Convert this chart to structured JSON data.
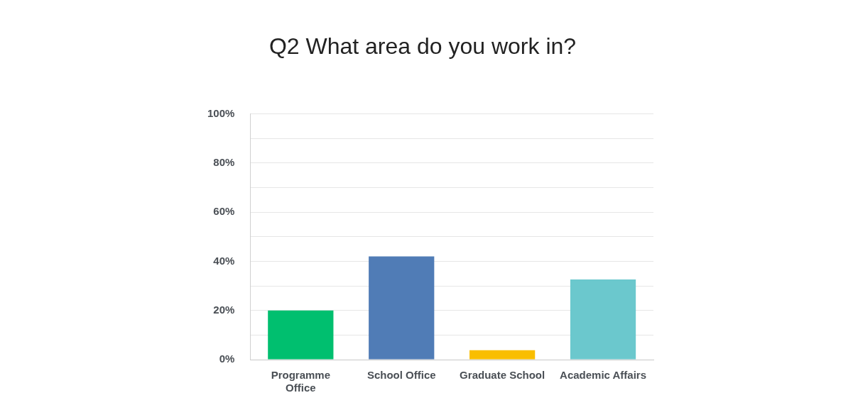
{
  "chart_data": {
    "type": "bar",
    "title": "Q2 What area do you work in?",
    "categories": [
      "Programme Office",
      "School Office",
      "Graduate School",
      "Academic Affairs"
    ],
    "values": [
      20,
      42,
      3.8,
      32.6
    ],
    "colors": [
      "#00bf6f",
      "#507cb6",
      "#f9be00",
      "#6bc8cd"
    ],
    "ylim": [
      0,
      100
    ],
    "yticks": [
      {
        "value": 0,
        "label": "0%"
      },
      {
        "value": 10,
        "label": null
      },
      {
        "value": 20,
        "label": "20%"
      },
      {
        "value": 30,
        "label": null
      },
      {
        "value": 40,
        "label": "40%"
      },
      {
        "value": 50,
        "label": null
      },
      {
        "value": 60,
        "label": "60%"
      },
      {
        "value": 70,
        "label": null
      },
      {
        "value": 80,
        "label": "80%"
      },
      {
        "value": 90,
        "label": null
      },
      {
        "value": 100,
        "label": "100%"
      }
    ],
    "grid": "y",
    "legend": false
  }
}
